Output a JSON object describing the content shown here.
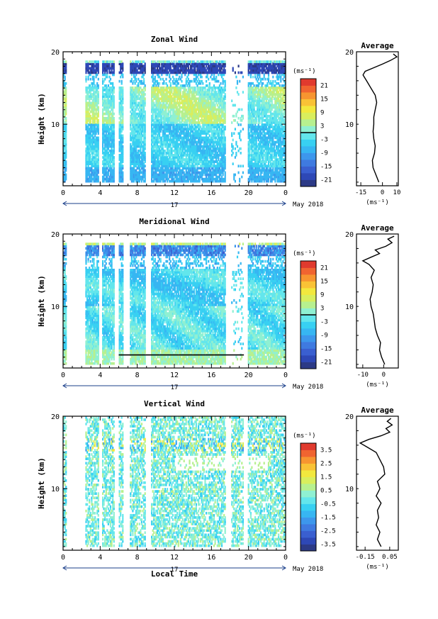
{
  "figure": {
    "month_label": "May 2018",
    "day_label": "17",
    "xlabel": "Local Time"
  },
  "chart_data": [
    {
      "type": "heatmap",
      "title": "Zonal Wind",
      "ylabel": "Height (km)",
      "xlim": [
        0,
        24
      ],
      "ylim": [
        1.5,
        20
      ],
      "xticks": [
        "0",
        "4",
        "8",
        "12",
        "16",
        "20",
        "0"
      ],
      "yticks": [
        {
          "value": 20,
          "label": "20"
        },
        {
          "value": 10,
          "label": "10"
        }
      ],
      "colorbar": {
        "unit": "(ms⁻¹)",
        "ticks": [
          "21",
          "15",
          "9",
          "3",
          "-3",
          "-9",
          "-15",
          "-21"
        ],
        "range": [
          -24,
          24
        ],
        "contour_at": 0
      },
      "average": {
        "title": "Average",
        "xlabel": "(ms⁻¹)",
        "xticks": [
          {
            "value": -15,
            "label": "-15"
          },
          {
            "value": 0,
            "label": "0"
          },
          {
            "value": 10,
            "label": "10"
          }
        ],
        "xlim": [
          -18,
          11
        ],
        "profile": [
          {
            "h": 2.0,
            "v": -2.5
          },
          {
            "h": 3.0,
            "v": -4.5
          },
          {
            "h": 4.0,
            "v": -6.5
          },
          {
            "h": 5.0,
            "v": -7.0
          },
          {
            "h": 6.0,
            "v": -5.5
          },
          {
            "h": 7.0,
            "v": -5.0
          },
          {
            "h": 8.0,
            "v": -6.0
          },
          {
            "h": 9.0,
            "v": -6.5
          },
          {
            "h": 10.0,
            "v": -6.0
          },
          {
            "h": 11.0,
            "v": -6.0
          },
          {
            "h": 12.0,
            "v": -5.0
          },
          {
            "h": 13.0,
            "v": -4.0
          },
          {
            "h": 14.0,
            "v": -5.0
          },
          {
            "h": 15.0,
            "v": -8.0
          },
          {
            "h": 16.0,
            "v": -11.0
          },
          {
            "h": 16.8,
            "v": -13.5
          },
          {
            "h": 17.3,
            "v": -12.0
          },
          {
            "h": 17.8,
            "v": -6.0
          },
          {
            "h": 18.3,
            "v": 0.0
          },
          {
            "h": 18.8,
            "v": 5.5
          },
          {
            "h": 19.3,
            "v": 10.0
          },
          {
            "h": 19.7,
            "v": 7.5
          }
        ]
      }
    },
    {
      "type": "heatmap",
      "title": "Meridional Wind",
      "ylabel": "Height (km)",
      "xlim": [
        0,
        24
      ],
      "ylim": [
        1.5,
        20
      ],
      "xticks": [
        "0",
        "4",
        "8",
        "12",
        "16",
        "20",
        "0"
      ],
      "yticks": [
        {
          "value": 20,
          "label": "20"
        },
        {
          "value": 10,
          "label": "10"
        }
      ],
      "colorbar": {
        "unit": "(ms⁻¹)",
        "ticks": [
          "21",
          "15",
          "9",
          "3",
          "-3",
          "-9",
          "-15",
          "-21"
        ],
        "range": [
          -24,
          24
        ],
        "contour_at": 0
      },
      "average": {
        "title": "Average",
        "xlabel": "(ms⁻¹)",
        "xticks": [
          {
            "value": -10,
            "label": "-10"
          },
          {
            "value": 0,
            "label": "0"
          }
        ],
        "xlim": [
          -13,
          7
        ],
        "profile": [
          {
            "h": 2.0,
            "v": 0.5
          },
          {
            "h": 3.0,
            "v": -1.0
          },
          {
            "h": 4.0,
            "v": -2.0
          },
          {
            "h": 5.0,
            "v": -1.5
          },
          {
            "h": 6.0,
            "v": -3.0
          },
          {
            "h": 7.0,
            "v": -4.0
          },
          {
            "h": 8.0,
            "v": -4.5
          },
          {
            "h": 9.0,
            "v": -5.0
          },
          {
            "h": 10.0,
            "v": -6.0
          },
          {
            "h": 11.0,
            "v": -6.5
          },
          {
            "h": 12.0,
            "v": -5.5
          },
          {
            "h": 13.0,
            "v": -5.0
          },
          {
            "h": 14.0,
            "v": -6.0
          },
          {
            "h": 15.0,
            "v": -4.5
          },
          {
            "h": 15.8,
            "v": -7.0
          },
          {
            "h": 16.3,
            "v": -10.0
          },
          {
            "h": 16.8,
            "v": -6.0
          },
          {
            "h": 17.3,
            "v": -2.0
          },
          {
            "h": 17.8,
            "v": -4.0
          },
          {
            "h": 18.3,
            "v": 1.0
          },
          {
            "h": 18.8,
            "v": 4.0
          },
          {
            "h": 19.3,
            "v": 2.0
          },
          {
            "h": 19.7,
            "v": 5.0
          }
        ]
      }
    },
    {
      "type": "heatmap",
      "title": "Vertical Wind",
      "ylabel": "Height (km)",
      "xlabel": "Local Time",
      "xlim": [
        0,
        24
      ],
      "ylim": [
        1.5,
        20
      ],
      "xticks": [
        "0",
        "4",
        "8",
        "12",
        "16",
        "20",
        "0"
      ],
      "yticks": [
        {
          "value": 20,
          "label": "20"
        },
        {
          "value": 10,
          "label": "10"
        }
      ],
      "colorbar": {
        "unit": "(ms⁻¹)",
        "ticks": [
          "3.5",
          "2.5",
          "1.5",
          "0.5",
          "-0.5",
          "-1.5",
          "-2.5",
          "-3.5"
        ],
        "range": [
          -4,
          4
        ],
        "contour_at": null
      },
      "average": {
        "title": "Average",
        "xlabel": "(ms⁻¹)",
        "xticks": [
          {
            "value": -0.15,
            "label": "-0.15"
          },
          {
            "value": 0.05,
            "label": "0.05"
          }
        ],
        "xlim": [
          -0.22,
          0.12
        ],
        "profile": [
          {
            "h": 2.0,
            "v": -0.02
          },
          {
            "h": 3.0,
            "v": -0.05
          },
          {
            "h": 4.0,
            "v": -0.03
          },
          {
            "h": 5.0,
            "v": -0.06
          },
          {
            "h": 6.0,
            "v": -0.04
          },
          {
            "h": 7.0,
            "v": -0.05
          },
          {
            "h": 8.0,
            "v": -0.02
          },
          {
            "h": 9.0,
            "v": -0.06
          },
          {
            "h": 10.0,
            "v": -0.03
          },
          {
            "h": 11.0,
            "v": -0.05
          },
          {
            "h": 12.0,
            "v": 0.01
          },
          {
            "h": 13.0,
            "v": 0.0
          },
          {
            "h": 14.0,
            "v": -0.03
          },
          {
            "h": 15.0,
            "v": -0.06
          },
          {
            "h": 15.8,
            "v": -0.14
          },
          {
            "h": 16.3,
            "v": -0.19
          },
          {
            "h": 16.8,
            "v": -0.12
          },
          {
            "h": 17.3,
            "v": -0.02
          },
          {
            "h": 17.8,
            "v": 0.05
          },
          {
            "h": 18.3,
            "v": 0.02
          },
          {
            "h": 18.8,
            "v": 0.07
          },
          {
            "h": 19.3,
            "v": 0.03
          },
          {
            "h": 19.7,
            "v": 0.06
          }
        ]
      }
    }
  ]
}
